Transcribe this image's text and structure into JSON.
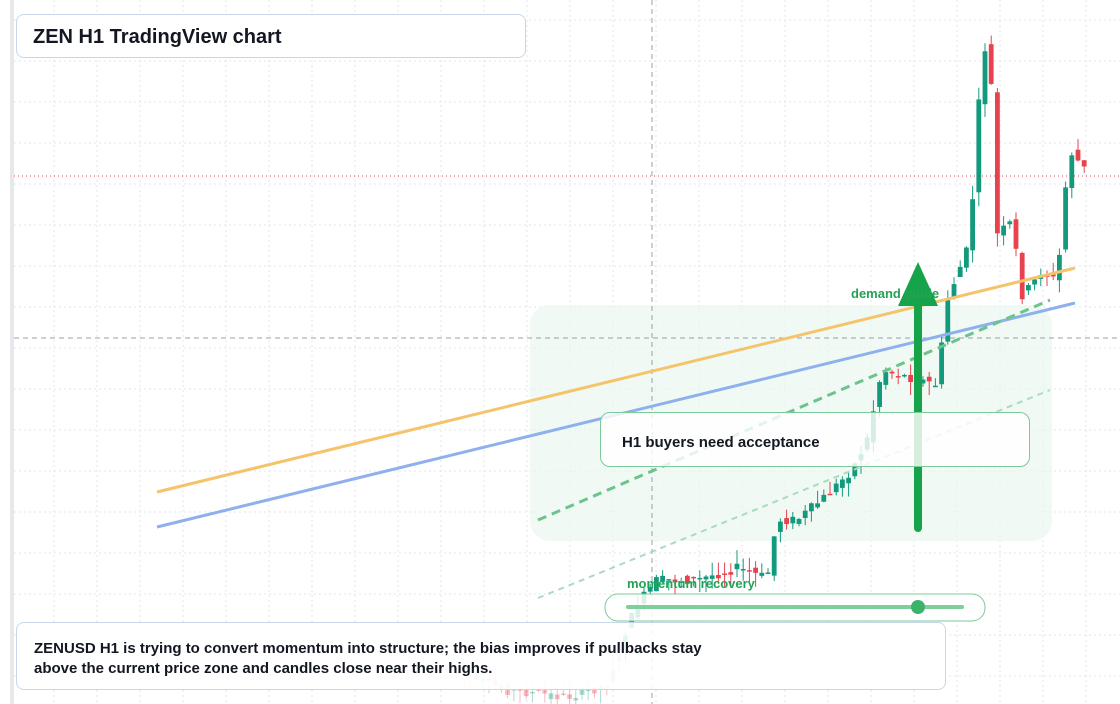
{
  "header": {
    "title": "ZEN H1 TradingView chart"
  },
  "annotations": {
    "zone_label": "demand guide",
    "slider_label": "momentum recovery",
    "callout": "H1 buyers need acceptance"
  },
  "description": "ZENUSD H1 is trying to convert momentum into structure; the bias improves if pullbacks stay above the current price zone and candles close near their highs."
}
